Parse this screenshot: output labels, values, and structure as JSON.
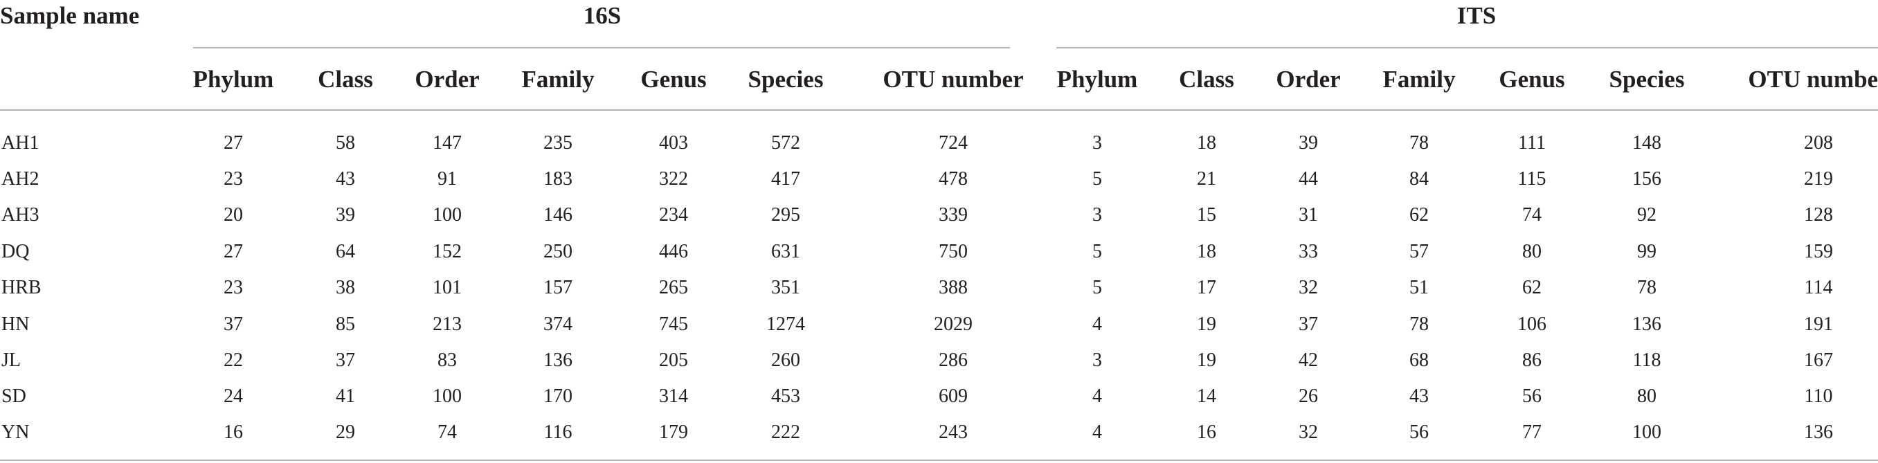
{
  "table": {
    "sample_header": "Sample name",
    "groups": [
      {
        "label": "16S",
        "columns": [
          "Phylum",
          "Class",
          "Order",
          "Family",
          "Genus",
          "Species",
          "OTU number"
        ]
      },
      {
        "label": "ITS",
        "columns": [
          "Phylum",
          "Class",
          "Order",
          "Family",
          "Genus",
          "Species",
          "OTU number"
        ]
      }
    ],
    "rows": [
      {
        "name": "AH1",
        "s16": [
          "27",
          "58",
          "147",
          "235",
          "403",
          "572",
          "724"
        ],
        "its": [
          "3",
          "18",
          "39",
          "78",
          "111",
          "148",
          "208"
        ]
      },
      {
        "name": "AH2",
        "s16": [
          "23",
          "43",
          "91",
          "183",
          "322",
          "417",
          "478"
        ],
        "its": [
          "5",
          "21",
          "44",
          "84",
          "115",
          "156",
          "219"
        ]
      },
      {
        "name": "AH3",
        "s16": [
          "20",
          "39",
          "100",
          "146",
          "234",
          "295",
          "339"
        ],
        "its": [
          "3",
          "15",
          "31",
          "62",
          "74",
          "92",
          "128"
        ]
      },
      {
        "name": "DQ",
        "s16": [
          "27",
          "64",
          "152",
          "250",
          "446",
          "631",
          "750"
        ],
        "its": [
          "5",
          "18",
          "33",
          "57",
          "80",
          "99",
          "159"
        ]
      },
      {
        "name": "HRB",
        "s16": [
          "23",
          "38",
          "101",
          "157",
          "265",
          "351",
          "388"
        ],
        "its": [
          "5",
          "17",
          "32",
          "51",
          "62",
          "78",
          "114"
        ]
      },
      {
        "name": "HN",
        "s16": [
          "37",
          "85",
          "213",
          "374",
          "745",
          "1274",
          "2029"
        ],
        "its": [
          "4",
          "19",
          "37",
          "78",
          "106",
          "136",
          "191"
        ]
      },
      {
        "name": "JL",
        "s16": [
          "22",
          "37",
          "83",
          "136",
          "205",
          "260",
          "286"
        ],
        "its": [
          "3",
          "19",
          "42",
          "68",
          "86",
          "118",
          "167"
        ]
      },
      {
        "name": "SD",
        "s16": [
          "24",
          "41",
          "100",
          "170",
          "314",
          "453",
          "609"
        ],
        "its": [
          "4",
          "14",
          "26",
          "43",
          "56",
          "80",
          "110"
        ]
      },
      {
        "name": "YN",
        "s16": [
          "16",
          "29",
          "74",
          "116",
          "179",
          "222",
          "243"
        ],
        "its": [
          "4",
          "16",
          "32",
          "56",
          "77",
          "100",
          "136"
        ]
      }
    ]
  }
}
